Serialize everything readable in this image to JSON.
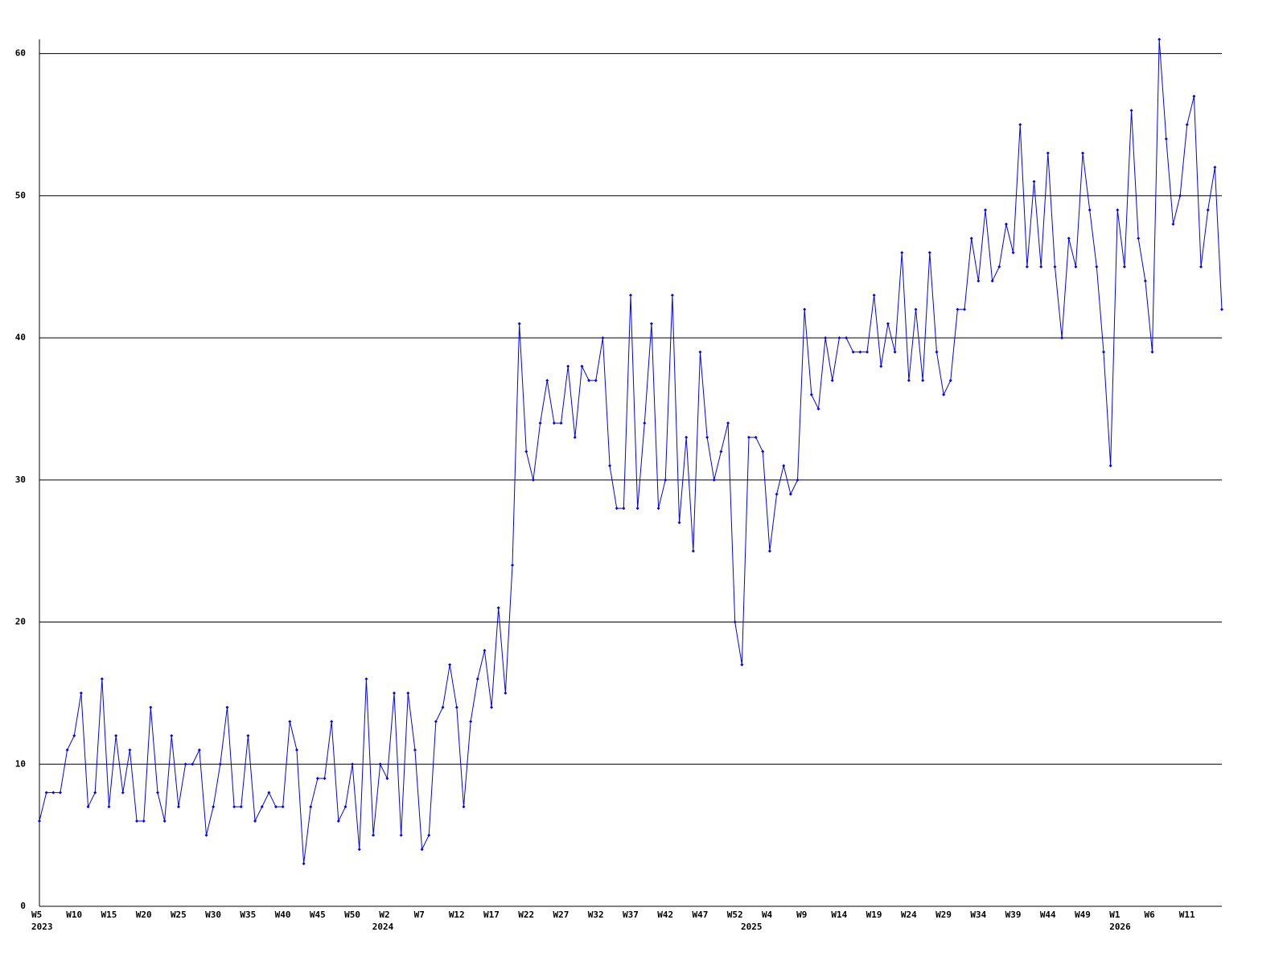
{
  "chart_data": {
    "type": "line",
    "categories": [
      "W5",
      null,
      null,
      null,
      null,
      "W10",
      null,
      null,
      null,
      null,
      "W15",
      null,
      null,
      null,
      null,
      "W20",
      null,
      null,
      null,
      null,
      "W25",
      null,
      null,
      null,
      null,
      "W30",
      null,
      null,
      null,
      null,
      "W35",
      null,
      null,
      null,
      null,
      "W40",
      null,
      null,
      null,
      null,
      "W45",
      null,
      null,
      null,
      null,
      "W50",
      null,
      null,
      null,
      null,
      "W2",
      null,
      null,
      null,
      null,
      "W7",
      null,
      null,
      null,
      null,
      "W12",
      null,
      null,
      null,
      null,
      "W17",
      null,
      null,
      null,
      null,
      "W22",
      null,
      null,
      null,
      null,
      "W27",
      null,
      null,
      null,
      null,
      "W32",
      null,
      null,
      null,
      null,
      "W37",
      null,
      null,
      null,
      null,
      "W42",
      null,
      null,
      null,
      null,
      "W47",
      null,
      null,
      null,
      null,
      "W52",
      null,
      null,
      null,
      null,
      "W4",
      null,
      null,
      null,
      null,
      "W9",
      null,
      null,
      null,
      null,
      "W14",
      null,
      null,
      null,
      null,
      "W19",
      null,
      null,
      null,
      null,
      "W24",
      null,
      null,
      null,
      null,
      "W29",
      null,
      null,
      null,
      null,
      "W34",
      null,
      null,
      null,
      null,
      "W39",
      null,
      null,
      null,
      null,
      "W44",
      null,
      null,
      null,
      null,
      "W49",
      null,
      null,
      null,
      null,
      "W1",
      null,
      null,
      null,
      null,
      "W6",
      null,
      null,
      null,
      null,
      "W11",
      null,
      null,
      null,
      null,
      null
    ],
    "years": [
      "2023",
      null,
      null,
      null,
      null,
      null,
      null,
      null,
      null,
      null,
      null,
      null,
      null,
      null,
      null,
      null,
      null,
      null,
      null,
      null,
      null,
      null,
      null,
      null,
      null,
      null,
      null,
      null,
      null,
      null,
      null,
      null,
      null,
      null,
      null,
      null,
      null,
      null,
      null,
      null,
      null,
      null,
      null,
      null,
      null,
      null,
      null,
      null,
      null,
      "2024",
      null,
      null,
      null,
      null,
      null,
      null,
      null,
      null,
      null,
      null,
      null,
      null,
      null,
      null,
      null,
      null,
      null,
      null,
      null,
      null,
      null,
      null,
      null,
      null,
      null,
      null,
      null,
      null,
      null,
      null,
      null,
      null,
      null,
      null,
      null,
      null,
      null,
      null,
      null,
      null,
      null,
      null,
      null,
      null,
      null,
      null,
      null,
      null,
      null,
      null,
      null,
      null,
      "2025",
      null,
      null,
      null,
      null,
      null,
      null,
      null,
      null,
      null,
      null,
      null,
      null,
      null,
      null,
      null,
      null,
      null,
      null,
      null,
      null,
      null,
      null,
      null,
      null,
      null,
      null,
      null,
      null,
      null,
      null,
      null,
      null,
      null,
      null,
      null,
      null,
      null,
      null,
      null,
      null,
      null,
      null,
      null,
      null,
      null,
      null,
      null,
      null,
      null,
      null,
      null,
      null,
      "2026",
      null,
      null,
      null,
      null,
      null,
      null,
      null,
      null,
      null,
      null,
      null,
      null,
      null,
      null,
      null
    ],
    "series": [
      {
        "color": "#0000ff",
        "values": [
          6,
          8,
          8,
          8,
          11,
          12,
          15,
          7,
          8,
          16,
          7,
          12,
          8,
          11,
          6,
          6,
          14,
          8,
          6,
          12,
          7,
          10,
          10,
          11,
          5,
          7,
          10,
          14,
          7,
          7,
          12,
          6,
          7,
          8,
          7,
          7,
          13,
          11,
          3,
          7,
          9,
          9,
          13,
          6,
          7,
          10,
          4,
          16,
          5,
          10,
          9,
          15,
          5,
          15,
          11,
          4,
          5,
          13,
          14,
          17,
          14,
          7,
          13,
          16,
          18,
          14,
          21,
          15,
          24,
          41,
          32,
          30,
          34,
          37,
          34,
          34,
          38,
          33,
          38,
          37,
          37,
          40,
          31,
          28,
          28,
          43,
          28,
          34,
          41,
          28,
          30,
          43,
          27,
          33,
          25,
          39,
          33,
          30,
          32,
          34,
          20,
          17,
          33,
          33,
          32,
          25,
          29,
          31,
          29,
          30,
          42,
          36,
          35,
          40,
          37,
          40,
          40,
          39,
          39,
          39,
          43,
          38,
          41,
          39,
          46,
          37,
          42,
          37,
          46,
          39,
          36,
          37,
          42,
          42,
          47,
          44,
          49,
          44,
          45,
          48,
          46,
          55,
          45,
          51,
          45,
          53,
          45,
          40,
          47,
          45,
          53,
          49,
          45,
          39,
          31,
          49,
          45,
          56,
          47,
          44,
          39,
          61,
          54,
          48,
          50,
          55,
          57,
          45,
          49,
          52,
          42
        ]
      }
    ],
    "ylim": [
      0,
      61
    ],
    "yticks": [
      0,
      10,
      20,
      30,
      40,
      50,
      60
    ],
    "grid": true
  }
}
